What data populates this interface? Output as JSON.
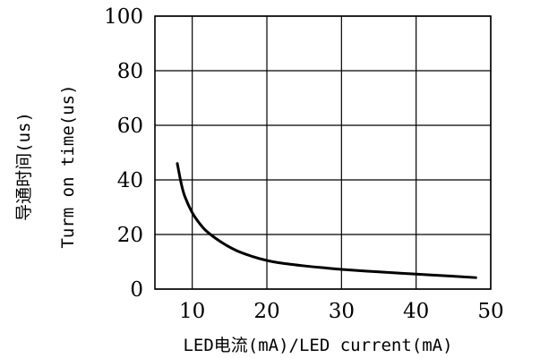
{
  "chart_data": {
    "type": "line",
    "title": "",
    "xlabel": "LED电流(mA)/LED current(mA)",
    "ylabel_cn": "导通时间(us)",
    "ylabel_en": "Turm on time(us)",
    "xlim": [
      5,
      50
    ],
    "ylim": [
      0,
      100
    ],
    "x_ticks": [
      10,
      20,
      30,
      40,
      50
    ],
    "y_ticks": [
      0,
      20,
      40,
      60,
      80,
      100
    ],
    "x_tick_labels": [
      "10",
      "20",
      "30",
      "40",
      "50"
    ],
    "y_tick_labels": [
      "0",
      "20",
      "40",
      "60",
      "80",
      "100"
    ],
    "grid": true,
    "series": [
      {
        "color": "#000000",
        "x": [
          8,
          8.5,
          9,
          10,
          11,
          12,
          14,
          16,
          18,
          20,
          22,
          25,
          28,
          30,
          35,
          40,
          45,
          48
        ],
        "y": [
          46,
          39,
          34,
          28,
          24,
          21,
          17,
          14,
          12,
          10.5,
          9.5,
          8.5,
          7.7,
          7.2,
          6.3,
          5.5,
          4.7,
          4.2
        ]
      }
    ]
  }
}
